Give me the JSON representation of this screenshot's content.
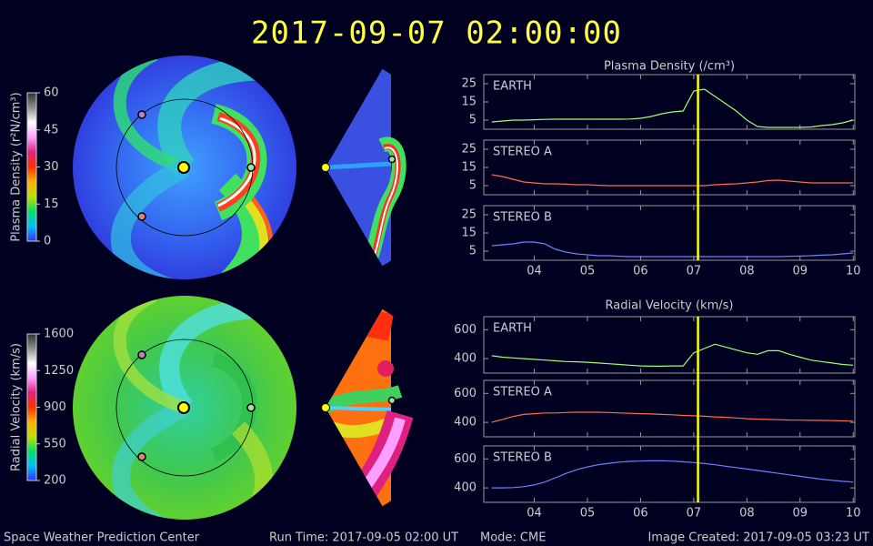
{
  "title": "2017-09-07 02:00:00",
  "colorbars": [
    {
      "label": "Plasma Density (r²N/cm³)",
      "lim": [
        0,
        60
      ],
      "ticks": [
        0,
        15,
        30,
        45,
        60
      ],
      "colors": [
        "#3030ff",
        "#00c0ff",
        "#00e060",
        "#c0e000",
        "#ffb000",
        "#ff3000",
        "#e02080",
        "#ffa0ff",
        "#ffffff",
        "#909090",
        "#303030"
      ]
    },
    {
      "label": "Radial Velocity (km/s)",
      "lim": [
        200,
        1600
      ],
      "ticks": [
        200,
        550,
        900,
        1250,
        1600
      ],
      "colors": [
        "#3030ff",
        "#00c0ff",
        "#00e060",
        "#c0e000",
        "#ffb000",
        "#ff3000",
        "#e02080",
        "#ffa0ff",
        "#ffffff",
        "#909090",
        "#303030"
      ]
    }
  ],
  "chart_data": [
    {
      "type": "line",
      "title": "Plasma Density (/cm³)",
      "x": [
        3.2,
        3.4,
        3.6,
        3.8,
        4.0,
        4.2,
        4.4,
        4.6,
        4.8,
        5.0,
        5.2,
        5.4,
        5.6,
        5.8,
        6.0,
        6.2,
        6.4,
        6.6,
        6.8,
        7.0,
        7.2,
        7.4,
        7.6,
        7.8,
        8.0,
        8.2,
        8.4,
        8.6,
        8.8,
        9.0,
        9.2,
        9.4,
        9.6,
        9.8,
        10.0
      ],
      "xlim": [
        3.05,
        10.03
      ],
      "xticks": [
        {
          "value": 4,
          "label": "04"
        },
        {
          "value": 5,
          "label": "05"
        },
        {
          "value": 6,
          "label": "06"
        },
        {
          "value": 7,
          "label": "07"
        },
        {
          "value": 8,
          "label": "08"
        },
        {
          "value": 9,
          "label": "09"
        },
        {
          "value": 10,
          "label": "10"
        }
      ],
      "ylim": [
        0,
        30
      ],
      "yticks": [
        5,
        15,
        25
      ],
      "now_x": 7.08,
      "now_color": "#ffff00",
      "series": [
        {
          "name": "EARTH",
          "color": "#a0ff70",
          "values": [
            4,
            4.5,
            5,
            5,
            5.2,
            5.4,
            5.5,
            5.5,
            5.5,
            5.5,
            5.5,
            5.5,
            5.5,
            5.6,
            6,
            7,
            8.5,
            9.5,
            10,
            21,
            22,
            18,
            14,
            10,
            5,
            1.5,
            1,
            1,
            1,
            1,
            1.2,
            2,
            2.5,
            3.5,
            5
          ]
        },
        {
          "name": "STEREO A",
          "color": "#ff6a50",
          "values": [
            11,
            10,
            8.5,
            7,
            6.5,
            6,
            6,
            5.8,
            5.5,
            5.5,
            5.2,
            5,
            5,
            5,
            5,
            5,
            5,
            5,
            5,
            5,
            5,
            5.5,
            5.8,
            6,
            6.5,
            7,
            7.8,
            8,
            7.5,
            7,
            6.5,
            6.5,
            6.5,
            6.5,
            6.5
          ]
        },
        {
          "name": "STEREO B",
          "color": "#7080ff",
          "values": [
            8,
            8.5,
            9,
            10,
            10,
            9,
            6,
            4.5,
            3.5,
            3,
            2.5,
            2.5,
            2.2,
            2,
            2,
            2,
            2,
            2,
            2,
            2,
            2,
            2,
            2,
            2,
            2,
            2,
            2,
            2,
            2.2,
            2.3,
            2.5,
            2.8,
            3,
            3.5,
            4
          ]
        }
      ]
    },
    {
      "type": "line",
      "title": "Radial Velocity (km/s)",
      "x": [
        3.2,
        3.4,
        3.6,
        3.8,
        4.0,
        4.2,
        4.4,
        4.6,
        4.8,
        5.0,
        5.2,
        5.4,
        5.6,
        5.8,
        6.0,
        6.2,
        6.4,
        6.6,
        6.8,
        7.0,
        7.2,
        7.4,
        7.6,
        7.8,
        8.0,
        8.2,
        8.4,
        8.6,
        8.8,
        9.0,
        9.2,
        9.4,
        9.6,
        9.8,
        10.0
      ],
      "xlim": [
        3.05,
        10.03
      ],
      "xticks": [
        {
          "value": 4,
          "label": "04"
        },
        {
          "value": 5,
          "label": "05"
        },
        {
          "value": 6,
          "label": "06"
        },
        {
          "value": 7,
          "label": "07"
        },
        {
          "value": 8,
          "label": "08"
        },
        {
          "value": 9,
          "label": "09"
        },
        {
          "value": 10,
          "label": "10"
        }
      ],
      "ylim": [
        300,
        690
      ],
      "yticks": [
        400,
        600
      ],
      "now_x": 7.08,
      "now_color": "#ffff00",
      "series": [
        {
          "name": "EARTH",
          "color": "#a0ff70",
          "values": [
            420,
            410,
            405,
            400,
            395,
            390,
            385,
            380,
            378,
            375,
            370,
            365,
            360,
            355,
            350,
            348,
            348,
            350,
            350,
            440,
            470,
            500,
            480,
            460,
            440,
            430,
            455,
            455,
            430,
            410,
            390,
            380,
            370,
            360,
            355
          ]
        },
        {
          "name": "STEREO A",
          "color": "#ff6a50",
          "values": [
            400,
            420,
            440,
            455,
            460,
            465,
            465,
            468,
            470,
            470,
            470,
            468,
            465,
            462,
            460,
            458,
            455,
            452,
            448,
            445,
            442,
            438,
            435,
            430,
            425,
            422,
            420,
            418,
            416,
            415,
            414,
            413,
            412,
            410,
            408
          ]
        },
        {
          "name": "STEREO B",
          "color": "#7080ff",
          "values": [
            400,
            400,
            402,
            408,
            420,
            440,
            470,
            500,
            525,
            545,
            560,
            570,
            578,
            583,
            585,
            587,
            587,
            585,
            580,
            575,
            568,
            560,
            550,
            540,
            530,
            520,
            510,
            500,
            490,
            480,
            470,
            460,
            452,
            445,
            440
          ]
        }
      ]
    }
  ],
  "footer": {
    "left": "Space Weather Prediction Center",
    "run_time": "Run Time: 2017-09-05 02:00 UT",
    "mode": "Mode: CME",
    "created": "Image Created: 2017-09-05 03:23 UT"
  }
}
